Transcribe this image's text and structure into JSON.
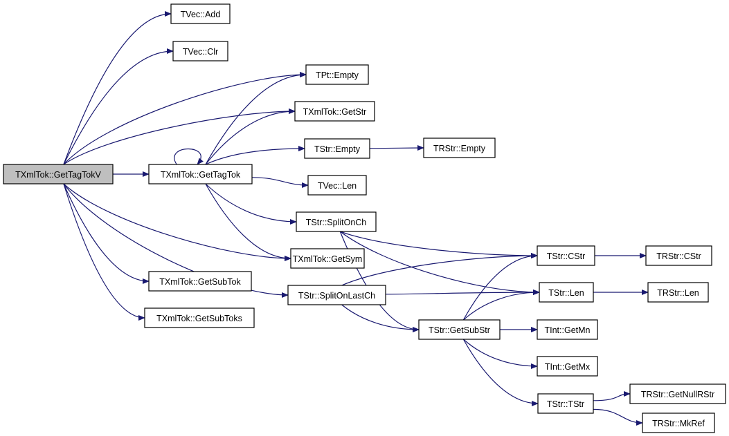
{
  "colors": {
    "edge": "#191970",
    "root_fill": "#bfbfbf",
    "node_fill": "#ffffff"
  },
  "nodes": [
    {
      "id": "getTagTokV",
      "label": "TXmlTok::GetTagTokV",
      "root": true
    },
    {
      "id": "vecAdd",
      "label": "TVec::Add"
    },
    {
      "id": "vecClr",
      "label": "TVec::Clr"
    },
    {
      "id": "ptEmpty",
      "label": "TPt::Empty"
    },
    {
      "id": "getStr",
      "label": "TXmlTok::GetStr"
    },
    {
      "id": "strEmpty",
      "label": "TStr::Empty"
    },
    {
      "id": "rstrEmpty",
      "label": "TRStr::Empty"
    },
    {
      "id": "getTagTok",
      "label": "TXmlTok::GetTagTok"
    },
    {
      "id": "vecLen",
      "label": "TVec::Len"
    },
    {
      "id": "splitOnCh",
      "label": "TStr::SplitOnCh"
    },
    {
      "id": "getSym",
      "label": "TXmlTok::GetSym"
    },
    {
      "id": "getSubTok",
      "label": "TXmlTok::GetSubTok"
    },
    {
      "id": "splitOnLastCh",
      "label": "TStr::SplitOnLastCh"
    },
    {
      "id": "getSubToks",
      "label": "TXmlTok::GetSubToks"
    },
    {
      "id": "strCStr",
      "label": "TStr::CStr"
    },
    {
      "id": "rstrCStr",
      "label": "TRStr::CStr"
    },
    {
      "id": "strLen",
      "label": "TStr::Len"
    },
    {
      "id": "rstrLen",
      "label": "TRStr::Len"
    },
    {
      "id": "getSubStr",
      "label": "TStr::GetSubStr"
    },
    {
      "id": "intGetMn",
      "label": "TInt::GetMn"
    },
    {
      "id": "intGetMx",
      "label": "TInt::GetMx"
    },
    {
      "id": "strTStr",
      "label": "TStr::TStr"
    },
    {
      "id": "getNullRStr",
      "label": "TRStr::GetNullRStr"
    },
    {
      "id": "mkRef",
      "label": "TRStr::MkRef"
    }
  ],
  "edges": [
    [
      "getTagTokV",
      "vecAdd"
    ],
    [
      "getTagTokV",
      "vecClr"
    ],
    [
      "getTagTokV",
      "ptEmpty"
    ],
    [
      "getTagTokV",
      "getStr"
    ],
    [
      "getTagTokV",
      "getTagTok"
    ],
    [
      "getTagTokV",
      "getSym"
    ],
    [
      "getTagTokV",
      "getSubTok"
    ],
    [
      "getTagTokV",
      "getSubToks"
    ],
    [
      "getTagTokV",
      "splitOnLastCh"
    ],
    [
      "getTagTok",
      "getTagTok"
    ],
    [
      "getTagTok",
      "ptEmpty"
    ],
    [
      "getTagTok",
      "getStr"
    ],
    [
      "getTagTok",
      "strEmpty"
    ],
    [
      "getTagTok",
      "vecLen"
    ],
    [
      "getTagTok",
      "splitOnCh"
    ],
    [
      "getTagTok",
      "getSym"
    ],
    [
      "strEmpty",
      "rstrEmpty"
    ],
    [
      "splitOnCh",
      "strCStr"
    ],
    [
      "splitOnCh",
      "strLen"
    ],
    [
      "splitOnCh",
      "getSubStr"
    ],
    [
      "splitOnLastCh",
      "strCStr"
    ],
    [
      "splitOnLastCh",
      "strLen"
    ],
    [
      "splitOnLastCh",
      "getSubStr"
    ],
    [
      "getSubStr",
      "strCStr"
    ],
    [
      "getSubStr",
      "strLen"
    ],
    [
      "getSubStr",
      "intGetMn"
    ],
    [
      "getSubStr",
      "intGetMx"
    ],
    [
      "getSubStr",
      "strTStr"
    ],
    [
      "strCStr",
      "rstrCStr"
    ],
    [
      "strLen",
      "rstrLen"
    ],
    [
      "strTStr",
      "getNullRStr"
    ],
    [
      "strTStr",
      "mkRef"
    ]
  ]
}
